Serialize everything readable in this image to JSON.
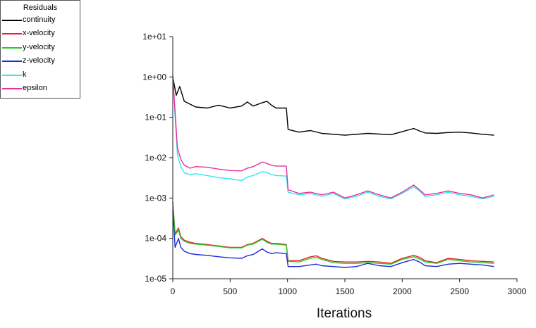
{
  "chart_data": {
    "type": "line",
    "title": "",
    "xlabel": "Iterations",
    "ylabel": "",
    "y_scale": "log",
    "xlim": [
      0,
      3000
    ],
    "ylim": [
      1e-05,
      10
    ],
    "x_ticks": [
      0,
      500,
      1000,
      1500,
      2000,
      2500,
      3000
    ],
    "x_tick_labels": [
      "0",
      "500",
      "1000",
      "1500",
      "2000",
      "2500",
      "3000"
    ],
    "y_ticks": [
      1e-05,
      0.0001,
      0.001,
      0.01,
      0.1,
      1,
      10
    ],
    "y_tick_labels": [
      "1e-05",
      "1e-04",
      "1e-03",
      "1e-02",
      "1e-01",
      "1e+00",
      "1e+01"
    ],
    "grid": false,
    "legend_title": "Residuals",
    "legend_position": "top-left",
    "series": [
      {
        "name": "continuity",
        "color": "#000000",
        "x": [
          0,
          30,
          60,
          100,
          200,
          300,
          400,
          500,
          600,
          650,
          700,
          780,
          820,
          860,
          900,
          990,
          1005,
          1100,
          1200,
          1300,
          1500,
          1700,
          1900,
          2000,
          2100,
          2150,
          2200,
          2300,
          2400,
          2500,
          2600,
          2700,
          2800
        ],
        "y": [
          1.0,
          0.35,
          0.58,
          0.25,
          0.18,
          0.17,
          0.2,
          0.17,
          0.19,
          0.24,
          0.19,
          0.23,
          0.25,
          0.2,
          0.17,
          0.17,
          0.05,
          0.043,
          0.047,
          0.04,
          0.036,
          0.04,
          0.037,
          0.044,
          0.053,
          0.046,
          0.041,
          0.04,
          0.042,
          0.043,
          0.041,
          0.038,
          0.036
        ]
      },
      {
        "name": "x-velocity",
        "color": "#e8212b",
        "x": [
          0,
          20,
          50,
          70,
          100,
          150,
          200,
          300,
          400,
          500,
          600,
          650,
          700,
          780,
          820,
          860,
          900,
          990,
          1005,
          1100,
          1200,
          1250,
          1300,
          1400,
          1500,
          1600,
          1700,
          1800,
          1900,
          2000,
          2100,
          2150,
          2200,
          2300,
          2400,
          2500,
          2600,
          2700,
          2800
        ],
        "y": [
          0.0008,
          0.00013,
          0.00018,
          0.00011,
          9e-05,
          8e-05,
          7.5e-05,
          7e-05,
          6.5e-05,
          6e-05,
          6e-05,
          7e-05,
          7.5e-05,
          0.0001,
          8.5e-05,
          7.5e-05,
          7.5e-05,
          7e-05,
          2.8e-05,
          2.8e-05,
          3.5e-05,
          3.7e-05,
          3.2e-05,
          2.7e-05,
          2.6e-05,
          2.6e-05,
          2.7e-05,
          2.6e-05,
          2.4e-05,
          3.2e-05,
          3.8e-05,
          3.4e-05,
          2.8e-05,
          2.5e-05,
          3.2e-05,
          3e-05,
          2.8e-05,
          2.7e-05,
          2.6e-05
        ]
      },
      {
        "name": "y-velocity",
        "color": "#22cc22",
        "x": [
          0,
          20,
          50,
          70,
          100,
          150,
          200,
          300,
          400,
          500,
          600,
          650,
          700,
          780,
          820,
          860,
          900,
          990,
          1005,
          1100,
          1200,
          1250,
          1300,
          1400,
          1500,
          1600,
          1700,
          1800,
          1900,
          2000,
          2100,
          2150,
          2200,
          2300,
          2400,
          2500,
          2600,
          2700,
          2800
        ],
        "y": [
          0.0008,
          0.00012,
          0.00016,
          0.0001,
          8.5e-05,
          7.5e-05,
          7.2e-05,
          6.8e-05,
          6.3e-05,
          5.8e-05,
          5.8e-05,
          6.8e-05,
          7.2e-05,
          9.5e-05,
          8e-05,
          7.2e-05,
          7.2e-05,
          6.8e-05,
          2.7e-05,
          2.6e-05,
          3.2e-05,
          3.4e-05,
          3e-05,
          2.5e-05,
          2.4e-05,
          2.4e-05,
          2.5e-05,
          2.4e-05,
          2.3e-05,
          3e-05,
          3.5e-05,
          3.1e-05,
          2.6e-05,
          2.4e-05,
          3e-05,
          2.8e-05,
          2.6e-05,
          2.5e-05,
          2.4e-05
        ]
      },
      {
        "name": "z-velocity",
        "color": "#1f2bd6",
        "x": [
          0,
          20,
          50,
          70,
          100,
          150,
          200,
          300,
          400,
          500,
          600,
          650,
          700,
          780,
          820,
          860,
          900,
          990,
          1005,
          1100,
          1200,
          1250,
          1300,
          1400,
          1500,
          1600,
          1700,
          1800,
          1900,
          2000,
          2100,
          2150,
          2200,
          2300,
          2400,
          2500,
          2600,
          2700,
          2800
        ],
        "y": [
          0.0005,
          6e-05,
          0.0001,
          6e-05,
          4.8e-05,
          4.2e-05,
          4e-05,
          3.8e-05,
          3.5e-05,
          3.3e-05,
          3.2e-05,
          3.7e-05,
          4e-05,
          5.5e-05,
          4.6e-05,
          4.2e-05,
          4.4e-05,
          4.2e-05,
          2e-05,
          2e-05,
          2.2e-05,
          2.3e-05,
          2.1e-05,
          2e-05,
          1.9e-05,
          2e-05,
          2.4e-05,
          2.1e-05,
          2e-05,
          2.5e-05,
          3e-05,
          2.6e-05,
          2.1e-05,
          2e-05,
          2.3e-05,
          2.4e-05,
          2.3e-05,
          2.2e-05,
          2e-05
        ]
      },
      {
        "name": "k",
        "color": "#33e6f0",
        "x": [
          0,
          40,
          70,
          100,
          150,
          200,
          300,
          400,
          500,
          600,
          650,
          700,
          780,
          820,
          860,
          900,
          990,
          1005,
          1100,
          1200,
          1300,
          1400,
          1500,
          1600,
          1700,
          1800,
          1900,
          2000,
          2100,
          2150,
          2200,
          2300,
          2400,
          2500,
          2600,
          2700,
          2800
        ],
        "y": [
          1.0,
          0.012,
          0.006,
          0.0042,
          0.0038,
          0.004,
          0.0036,
          0.0032,
          0.003,
          0.0027,
          0.0033,
          0.0036,
          0.0045,
          0.0043,
          0.0038,
          0.0036,
          0.0035,
          0.0014,
          0.0012,
          0.0013,
          0.0011,
          0.0013,
          0.00095,
          0.0011,
          0.0014,
          0.0011,
          0.00095,
          0.0013,
          0.0019,
          0.0015,
          0.0011,
          0.0012,
          0.0014,
          0.0012,
          0.0011,
          0.00095,
          0.0011
        ]
      },
      {
        "name": "epsilon",
        "color": "#e8309a",
        "x": [
          0,
          40,
          70,
          100,
          150,
          200,
          300,
          400,
          500,
          600,
          650,
          700,
          780,
          820,
          860,
          900,
          990,
          1005,
          1100,
          1200,
          1300,
          1400,
          1500,
          1600,
          1700,
          1800,
          1900,
          2000,
          2100,
          2150,
          2200,
          2300,
          2400,
          2500,
          2600,
          2700,
          2800
        ],
        "y": [
          1.1,
          0.018,
          0.009,
          0.0065,
          0.0055,
          0.006,
          0.0058,
          0.0052,
          0.0048,
          0.0047,
          0.0055,
          0.006,
          0.0078,
          0.0072,
          0.0065,
          0.0062,
          0.0062,
          0.0016,
          0.0013,
          0.0014,
          0.0012,
          0.0014,
          0.001,
          0.0012,
          0.0015,
          0.0012,
          0.001,
          0.0014,
          0.0021,
          0.0016,
          0.0012,
          0.0013,
          0.0015,
          0.0013,
          0.0012,
          0.001,
          0.0012
        ]
      }
    ]
  }
}
